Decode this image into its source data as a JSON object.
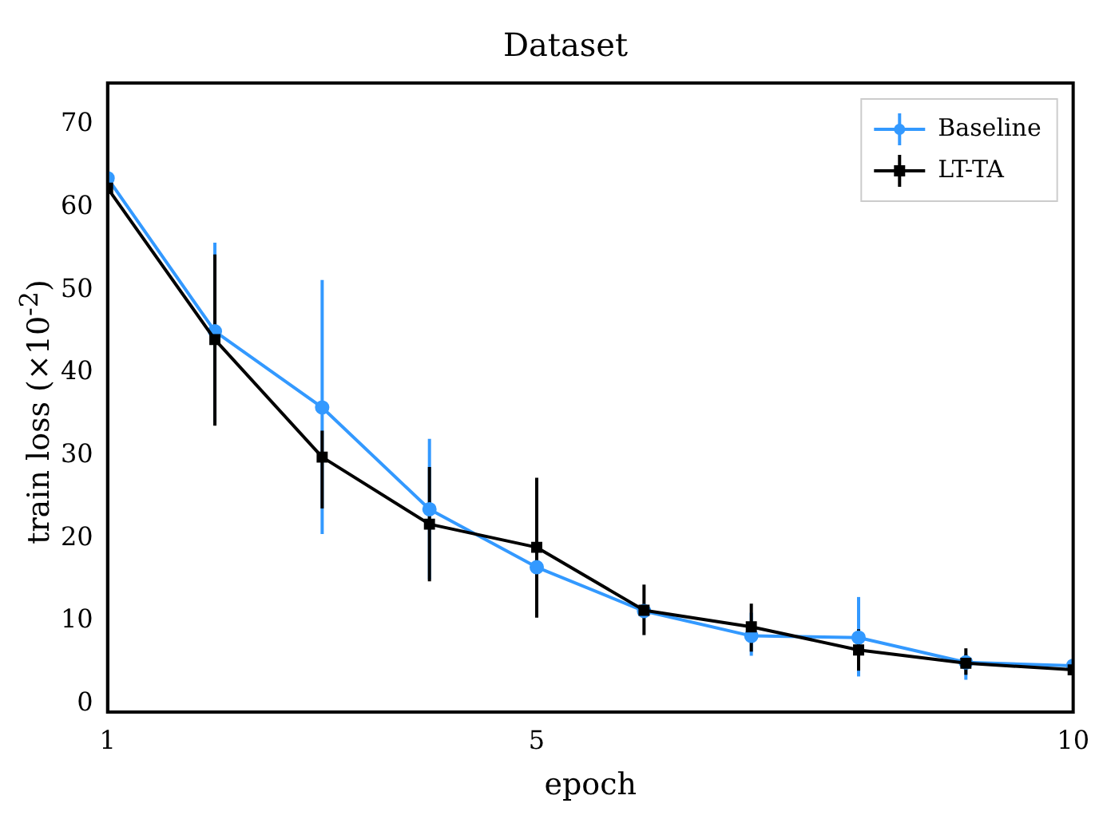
{
  "chart_data": {
    "type": "line",
    "title": "Dataset",
    "xlabel": "epoch",
    "ylabel": "train loss (×10$^{-2}$)",
    "x": [
      1,
      2,
      3,
      4,
      5,
      6,
      7,
      8,
      9,
      10
    ],
    "series": [
      {
        "name": "Baseline",
        "color": "#3399ff",
        "marker": "circle",
        "values": [
          63.5,
          45,
          35.8,
          23.5,
          16.5,
          11.2,
          8.2,
          8,
          5,
          4.6
        ],
        "errors": [
          null,
          [
            34,
            55.7
          ],
          [
            20.5,
            51.2
          ],
          [
            15,
            32
          ],
          null,
          null,
          [
            5.8,
            11
          ],
          [
            3.3,
            12.9
          ],
          [
            2.9,
            6
          ],
          null
        ]
      },
      {
        "name": "LT-TA",
        "color": "#000000",
        "marker": "square",
        "values": [
          62.3,
          44,
          29.8,
          21.7,
          18.9,
          11.3,
          9.3,
          6.5,
          4.9,
          4.1
        ],
        "errors": [
          null,
          [
            33.6,
            54.3
          ],
          [
            23.6,
            33
          ],
          [
            14.8,
            28.6
          ],
          [
            10.4,
            27.3
          ],
          [
            8.3,
            14.4
          ],
          [
            6.3,
            12.1
          ],
          [
            4,
            9
          ],
          [
            3.5,
            6.7
          ],
          null
        ]
      }
    ],
    "xlim": [
      1,
      10
    ],
    "xticks": [
      1,
      5,
      10
    ],
    "ylim": [
      -1,
      75
    ],
    "yticks": [
      0,
      10,
      20,
      30,
      40,
      50,
      60,
      70
    ],
    "grid": false,
    "legend": "top right",
    "line_style": "solid"
  }
}
